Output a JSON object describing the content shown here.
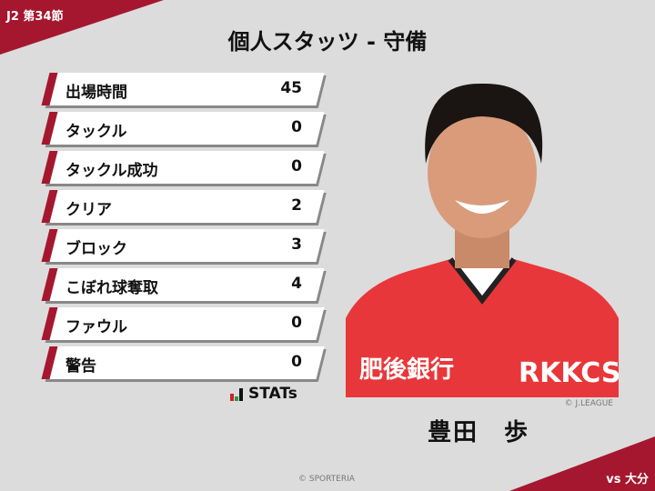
{
  "header": {
    "round": "J2 第34節",
    "title": "個人スタッツ - 守備"
  },
  "stats": [
    {
      "label": "出場時間",
      "value": "45"
    },
    {
      "label": "タックル",
      "value": "0"
    },
    {
      "label": "タックル成功",
      "value": "0"
    },
    {
      "label": "クリア",
      "value": "2"
    },
    {
      "label": "ブロック",
      "value": "3"
    },
    {
      "label": "こぼれ球奪取",
      "value": "4"
    },
    {
      "label": "ファウル",
      "value": "0"
    },
    {
      "label": "警告",
      "value": "0"
    }
  ],
  "provider": "STATs",
  "player": {
    "name": "豊田　歩",
    "photo_credit": "© J.LEAGUE",
    "sponsor_left": "肥後銀行",
    "sponsor_right": "RKKCS"
  },
  "footer": {
    "copyright": "© SPORTERIA",
    "opponent": "vs 大分"
  },
  "colors": {
    "accent": "#a5172f",
    "background": "#dcdcdc",
    "jersey": "#e8373a"
  }
}
